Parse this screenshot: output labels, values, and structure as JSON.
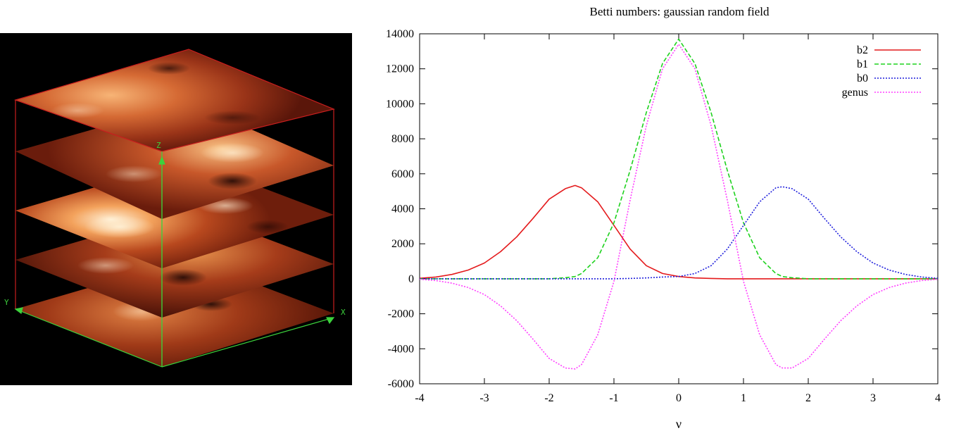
{
  "volume_view": {
    "axis_labels": {
      "x": "X",
      "y": "Y",
      "z": "Z"
    },
    "slice_count": 5,
    "colors": {
      "box_edge": "#c81e1e",
      "axis": "#3cd23c",
      "background": "#000000"
    },
    "colormap": [
      "#2a0a06",
      "#5a1a0c",
      "#8a2e14",
      "#b24a22",
      "#d8763a",
      "#f2a860",
      "#fff0d0"
    ]
  },
  "chart_data": {
    "type": "line",
    "title": "Betti numbers: gaussian random field",
    "xlabel": "ν",
    "ylabel": "",
    "xlim": [
      -4,
      4
    ],
    "ylim": [
      -6000,
      14000
    ],
    "xticks": [
      "-4",
      "-3",
      "-2",
      "-1",
      "0",
      "1",
      "2",
      "3",
      "4"
    ],
    "yticks": [
      "-6000",
      "-4000",
      "-2000",
      "0",
      "2000",
      "4000",
      "6000",
      "8000",
      "10000",
      "12000",
      "14000"
    ],
    "x": [
      -4.0,
      -3.75,
      -3.5,
      -3.25,
      -3.0,
      -2.75,
      -2.5,
      -2.25,
      -2.0,
      -1.75,
      -1.6,
      -1.5,
      -1.25,
      -1.0,
      -0.75,
      -0.5,
      -0.25,
      0.0,
      0.25,
      0.5,
      0.75,
      1.0,
      1.25,
      1.5,
      1.6,
      1.75,
      2.0,
      2.25,
      2.5,
      2.75,
      3.0,
      3.25,
      3.5,
      3.75,
      4.0
    ],
    "series": [
      {
        "name": "b2",
        "color": "#e41a1c",
        "dash": "solid",
        "values": [
          30,
          100,
          250,
          500,
          900,
          1550,
          2400,
          3450,
          4550,
          5150,
          5330,
          5200,
          4400,
          3050,
          1700,
          750,
          300,
          130,
          50,
          20,
          0,
          0,
          0,
          0,
          0,
          0,
          0,
          0,
          0,
          0,
          0,
          0,
          0,
          0,
          0
        ]
      },
      {
        "name": "b1",
        "color": "#1ed21e",
        "dash": "dashed",
        "values": [
          0,
          0,
          0,
          0,
          0,
          0,
          0,
          0,
          0,
          60,
          130,
          300,
          1200,
          3200,
          6200,
          9500,
          12300,
          13700,
          12300,
          9500,
          6200,
          3200,
          1200,
          300,
          130,
          60,
          0,
          0,
          0,
          0,
          0,
          0,
          0,
          0,
          0
        ]
      },
      {
        "name": "b0",
        "color": "#1e1edc",
        "dash": "dotted",
        "values": [
          0,
          0,
          0,
          0,
          0,
          0,
          0,
          0,
          0,
          0,
          0,
          0,
          0,
          0,
          20,
          50,
          100,
          130,
          300,
          750,
          1700,
          3050,
          4400,
          5200,
          5260,
          5150,
          4550,
          3450,
          2400,
          1550,
          900,
          500,
          250,
          100,
          30
        ]
      },
      {
        "name": "genus",
        "color": "#ff40ff",
        "dash": "dotted",
        "values": [
          -30,
          -100,
          -250,
          -500,
          -900,
          -1550,
          -2400,
          -3450,
          -4550,
          -5100,
          -5150,
          -4900,
          -3200,
          -150,
          4500,
          8750,
          12000,
          13400,
          12000,
          8750,
          4500,
          -150,
          -3200,
          -4900,
          -5100,
          -5100,
          -4550,
          -3450,
          -2400,
          -1550,
          -900,
          -500,
          -250,
          -100,
          -30
        ]
      }
    ],
    "legend_position": "top-right",
    "grid": false
  }
}
